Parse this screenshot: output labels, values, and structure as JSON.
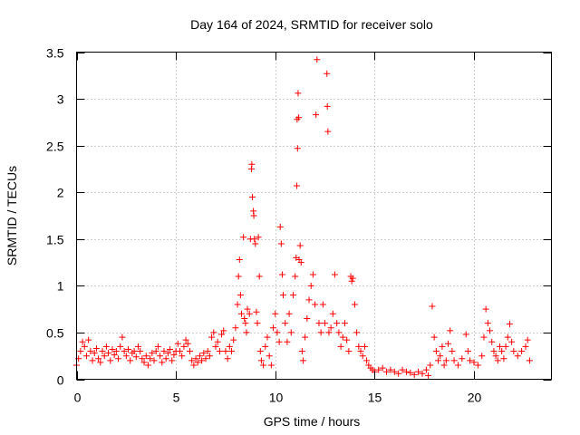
{
  "chart_data": {
    "type": "scatter",
    "title": "Day 164 of 2024, SRMTID for receiver solo",
    "xlabel": "GPS time / hours",
    "ylabel": "SRMTID / TECUs",
    "xlim": [
      0,
      23.9
    ],
    "ylim": [
      0,
      3.5
    ],
    "x_ticks": [
      0,
      5,
      10,
      15,
      20
    ],
    "y_ticks": [
      0,
      0.5,
      1,
      1.5,
      2,
      2.5,
      3,
      3.5
    ],
    "x_tick_labels": [
      "0",
      "5",
      "10",
      "15",
      "20"
    ],
    "y_tick_labels": [
      "0",
      "0.5",
      "1",
      "1.5",
      "2",
      "2.5",
      "3",
      "3.5"
    ],
    "grid": true,
    "marker": "+",
    "color": "#ff0000",
    "series": [
      {
        "name": "SRMTID",
        "points": [
          [
            0.0,
            0.15
          ],
          [
            0.1,
            0.22
          ],
          [
            0.2,
            0.3
          ],
          [
            0.3,
            0.4
          ],
          [
            0.4,
            0.35
          ],
          [
            0.5,
            0.25
          ],
          [
            0.6,
            0.42
          ],
          [
            0.7,
            0.3
          ],
          [
            0.8,
            0.2
          ],
          [
            0.9,
            0.28
          ],
          [
            1.0,
            0.33
          ],
          [
            1.1,
            0.22
          ],
          [
            1.2,
            0.18
          ],
          [
            1.3,
            0.3
          ],
          [
            1.4,
            0.25
          ],
          [
            1.5,
            0.35
          ],
          [
            1.6,
            0.28
          ],
          [
            1.7,
            0.2
          ],
          [
            1.8,
            0.32
          ],
          [
            1.9,
            0.26
          ],
          [
            2.0,
            0.3
          ],
          [
            2.1,
            0.22
          ],
          [
            2.2,
            0.35
          ],
          [
            2.3,
            0.45
          ],
          [
            2.4,
            0.3
          ],
          [
            2.5,
            0.25
          ],
          [
            2.6,
            0.32
          ],
          [
            2.7,
            0.2
          ],
          [
            2.8,
            0.28
          ],
          [
            2.9,
            0.3
          ],
          [
            3.0,
            0.24
          ],
          [
            3.1,
            0.35
          ],
          [
            3.2,
            0.3
          ],
          [
            3.3,
            0.22
          ],
          [
            3.4,
            0.18
          ],
          [
            3.5,
            0.25
          ],
          [
            3.6,
            0.15
          ],
          [
            3.7,
            0.22
          ],
          [
            3.8,
            0.28
          ],
          [
            3.9,
            0.2
          ],
          [
            4.0,
            0.3
          ],
          [
            4.1,
            0.35
          ],
          [
            4.2,
            0.25
          ],
          [
            4.3,
            0.18
          ],
          [
            4.4,
            0.3
          ],
          [
            4.5,
            0.22
          ],
          [
            4.6,
            0.28
          ],
          [
            4.7,
            0.32
          ],
          [
            4.8,
            0.2
          ],
          [
            4.9,
            0.26
          ],
          [
            5.0,
            0.3
          ],
          [
            5.1,
            0.38
          ],
          [
            5.2,
            0.3
          ],
          [
            5.3,
            0.25
          ],
          [
            5.4,
            0.35
          ],
          [
            5.5,
            0.42
          ],
          [
            5.6,
            0.38
          ],
          [
            5.7,
            0.3
          ],
          [
            5.8,
            0.2
          ],
          [
            5.9,
            0.15
          ],
          [
            6.0,
            0.22
          ],
          [
            6.1,
            0.18
          ],
          [
            6.2,
            0.25
          ],
          [
            6.3,
            0.2
          ],
          [
            6.4,
            0.28
          ],
          [
            6.5,
            0.22
          ],
          [
            6.6,
            0.3
          ],
          [
            6.7,
            0.25
          ],
          [
            6.8,
            0.45
          ],
          [
            6.9,
            0.5
          ],
          [
            7.0,
            0.35
          ],
          [
            7.1,
            0.4
          ],
          [
            7.2,
            0.3
          ],
          [
            7.3,
            0.48
          ],
          [
            7.4,
            0.52
          ],
          [
            7.5,
            0.3
          ],
          [
            7.6,
            0.22
          ],
          [
            7.7,
            0.35
          ],
          [
            7.8,
            0.3
          ],
          [
            7.9,
            0.42
          ],
          [
            8.0,
            0.55
          ],
          [
            8.1,
            0.8
          ],
          [
            8.15,
            1.1
          ],
          [
            8.2,
            1.28
          ],
          [
            8.25,
            0.9
          ],
          [
            8.3,
            0.7
          ],
          [
            8.4,
            1.52
          ],
          [
            8.45,
            0.65
          ],
          [
            8.5,
            0.6
          ],
          [
            8.55,
            0.5
          ],
          [
            8.6,
            0.75
          ],
          [
            8.7,
            0.7
          ],
          [
            8.75,
            1.5
          ],
          [
            8.8,
            2.25
          ],
          [
            8.82,
            2.3
          ],
          [
            8.85,
            1.95
          ],
          [
            8.9,
            1.8
          ],
          [
            8.92,
            1.75
          ],
          [
            8.95,
            1.5
          ],
          [
            9.0,
            1.45
          ],
          [
            9.05,
            0.72
          ],
          [
            9.1,
            0.6
          ],
          [
            9.15,
            1.52
          ],
          [
            9.2,
            1.1
          ],
          [
            9.25,
            0.3
          ],
          [
            9.3,
            0.2
          ],
          [
            9.4,
            0.15
          ],
          [
            9.5,
            0.35
          ],
          [
            9.6,
            0.45
          ],
          [
            9.7,
            0.25
          ],
          [
            9.8,
            0.15
          ],
          [
            9.9,
            0.55
          ],
          [
            10.0,
            0.7
          ],
          [
            10.1,
            0.5
          ],
          [
            10.2,
            0.4
          ],
          [
            10.25,
            1.63
          ],
          [
            10.3,
            1.45
          ],
          [
            10.35,
            1.12
          ],
          [
            10.4,
            0.9
          ],
          [
            10.5,
            0.6
          ],
          [
            10.6,
            0.4
          ],
          [
            10.7,
            0.7
          ],
          [
            10.8,
            0.5
          ],
          [
            10.9,
            0.9
          ],
          [
            11.0,
            1.1
          ],
          [
            11.05,
            1.3
          ],
          [
            11.08,
            2.07
          ],
          [
            11.1,
            2.78
          ],
          [
            11.12,
            2.47
          ],
          [
            11.15,
            3.06
          ],
          [
            11.18,
            2.8
          ],
          [
            11.2,
            1.28
          ],
          [
            11.25,
            1.43
          ],
          [
            11.3,
            1.25
          ],
          [
            11.35,
            0.3
          ],
          [
            11.4,
            0.2
          ],
          [
            11.5,
            0.45
          ],
          [
            11.6,
            0.65
          ],
          [
            11.7,
            0.85
          ],
          [
            11.8,
            1.0
          ],
          [
            11.9,
            1.12
          ],
          [
            12.0,
            0.8
          ],
          [
            12.05,
            2.83
          ],
          [
            12.1,
            3.42
          ],
          [
            12.2,
            0.6
          ],
          [
            12.3,
            0.5
          ],
          [
            12.4,
            0.8
          ],
          [
            12.5,
            0.6
          ],
          [
            12.6,
            3.27
          ],
          [
            12.62,
            2.92
          ],
          [
            12.65,
            2.65
          ],
          [
            12.7,
            0.5
          ],
          [
            12.8,
            0.55
          ],
          [
            12.9,
            0.7
          ],
          [
            13.0,
            1.12
          ],
          [
            13.1,
            0.6
          ],
          [
            13.2,
            0.5
          ],
          [
            13.3,
            0.35
          ],
          [
            13.4,
            0.45
          ],
          [
            13.5,
            0.6
          ],
          [
            13.6,
            0.42
          ],
          [
            13.7,
            0.3
          ],
          [
            13.8,
            1.1
          ],
          [
            13.85,
            1.05
          ],
          [
            13.9,
            1.08
          ],
          [
            14.0,
            0.8
          ],
          [
            14.1,
            0.5
          ],
          [
            14.2,
            0.35
          ],
          [
            14.3,
            0.3
          ],
          [
            14.4,
            0.25
          ],
          [
            14.5,
            0.35
          ],
          [
            14.6,
            0.2
          ],
          [
            14.7,
            0.15
          ],
          [
            14.8,
            0.12
          ],
          [
            14.9,
            0.1
          ],
          [
            15.0,
            0.08
          ],
          [
            15.2,
            0.1
          ],
          [
            15.4,
            0.12
          ],
          [
            15.6,
            0.08
          ],
          [
            15.8,
            0.1
          ],
          [
            16.0,
            0.08
          ],
          [
            16.2,
            0.06
          ],
          [
            16.4,
            0.1
          ],
          [
            16.6,
            0.08
          ],
          [
            16.8,
            0.07
          ],
          [
            17.0,
            0.05
          ],
          [
            17.2,
            0.08
          ],
          [
            17.4,
            0.06
          ],
          [
            17.6,
            0.1
          ],
          [
            17.7,
            0.04
          ],
          [
            17.8,
            0.15
          ],
          [
            17.9,
            0.78
          ],
          [
            18.0,
            0.45
          ],
          [
            18.1,
            0.3
          ],
          [
            18.2,
            0.2
          ],
          [
            18.3,
            0.25
          ],
          [
            18.4,
            0.35
          ],
          [
            18.5,
            0.15
          ],
          [
            18.6,
            0.2
          ],
          [
            18.7,
            0.38
          ],
          [
            18.8,
            0.52
          ],
          [
            18.9,
            0.3
          ],
          [
            19.0,
            0.2
          ],
          [
            19.2,
            0.15
          ],
          [
            19.4,
            0.22
          ],
          [
            19.6,
            0.48
          ],
          [
            19.7,
            0.3
          ],
          [
            19.8,
            0.2
          ],
          [
            20.0,
            0.18
          ],
          [
            20.2,
            0.15
          ],
          [
            20.4,
            0.25
          ],
          [
            20.5,
            0.45
          ],
          [
            20.6,
            0.75
          ],
          [
            20.7,
            0.6
          ],
          [
            20.8,
            0.52
          ],
          [
            20.9,
            0.4
          ],
          [
            21.0,
            0.3
          ],
          [
            21.1,
            0.25
          ],
          [
            21.2,
            0.2
          ],
          [
            21.3,
            0.35
          ],
          [
            21.4,
            0.3
          ],
          [
            21.5,
            0.22
          ],
          [
            21.6,
            0.35
          ],
          [
            21.7,
            0.45
          ],
          [
            21.8,
            0.59
          ],
          [
            21.9,
            0.4
          ],
          [
            22.0,
            0.3
          ],
          [
            22.2,
            0.25
          ],
          [
            22.4,
            0.3
          ],
          [
            22.6,
            0.35
          ],
          [
            22.7,
            0.42
          ],
          [
            22.8,
            0.2
          ]
        ]
      }
    ]
  }
}
